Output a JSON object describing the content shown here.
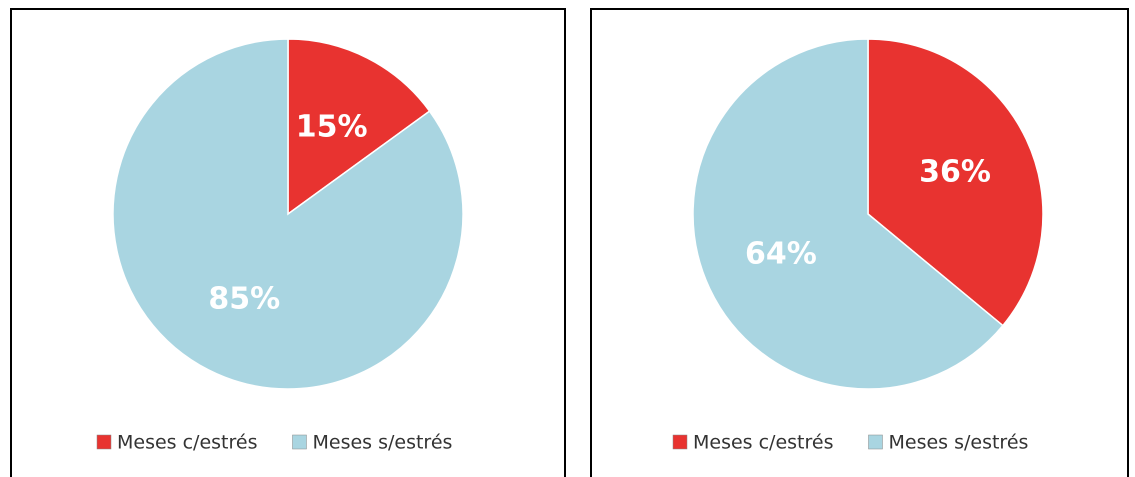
{
  "chart_data": [
    {
      "type": "pie",
      "categories": [
        "Meses c/estrés",
        "Meses s/estrés"
      ],
      "values": [
        15,
        85
      ],
      "value_labels": [
        "15%",
        "85%"
      ],
      "colors": [
        "#e83330",
        "#a9d5e1"
      ]
    },
    {
      "type": "pie",
      "categories": [
        "Meses c/estrés",
        "Meses s/estrés"
      ],
      "values": [
        36,
        64
      ],
      "value_labels": [
        "36%",
        "64%"
      ],
      "colors": [
        "#e83330",
        "#a9d5e1"
      ]
    }
  ]
}
